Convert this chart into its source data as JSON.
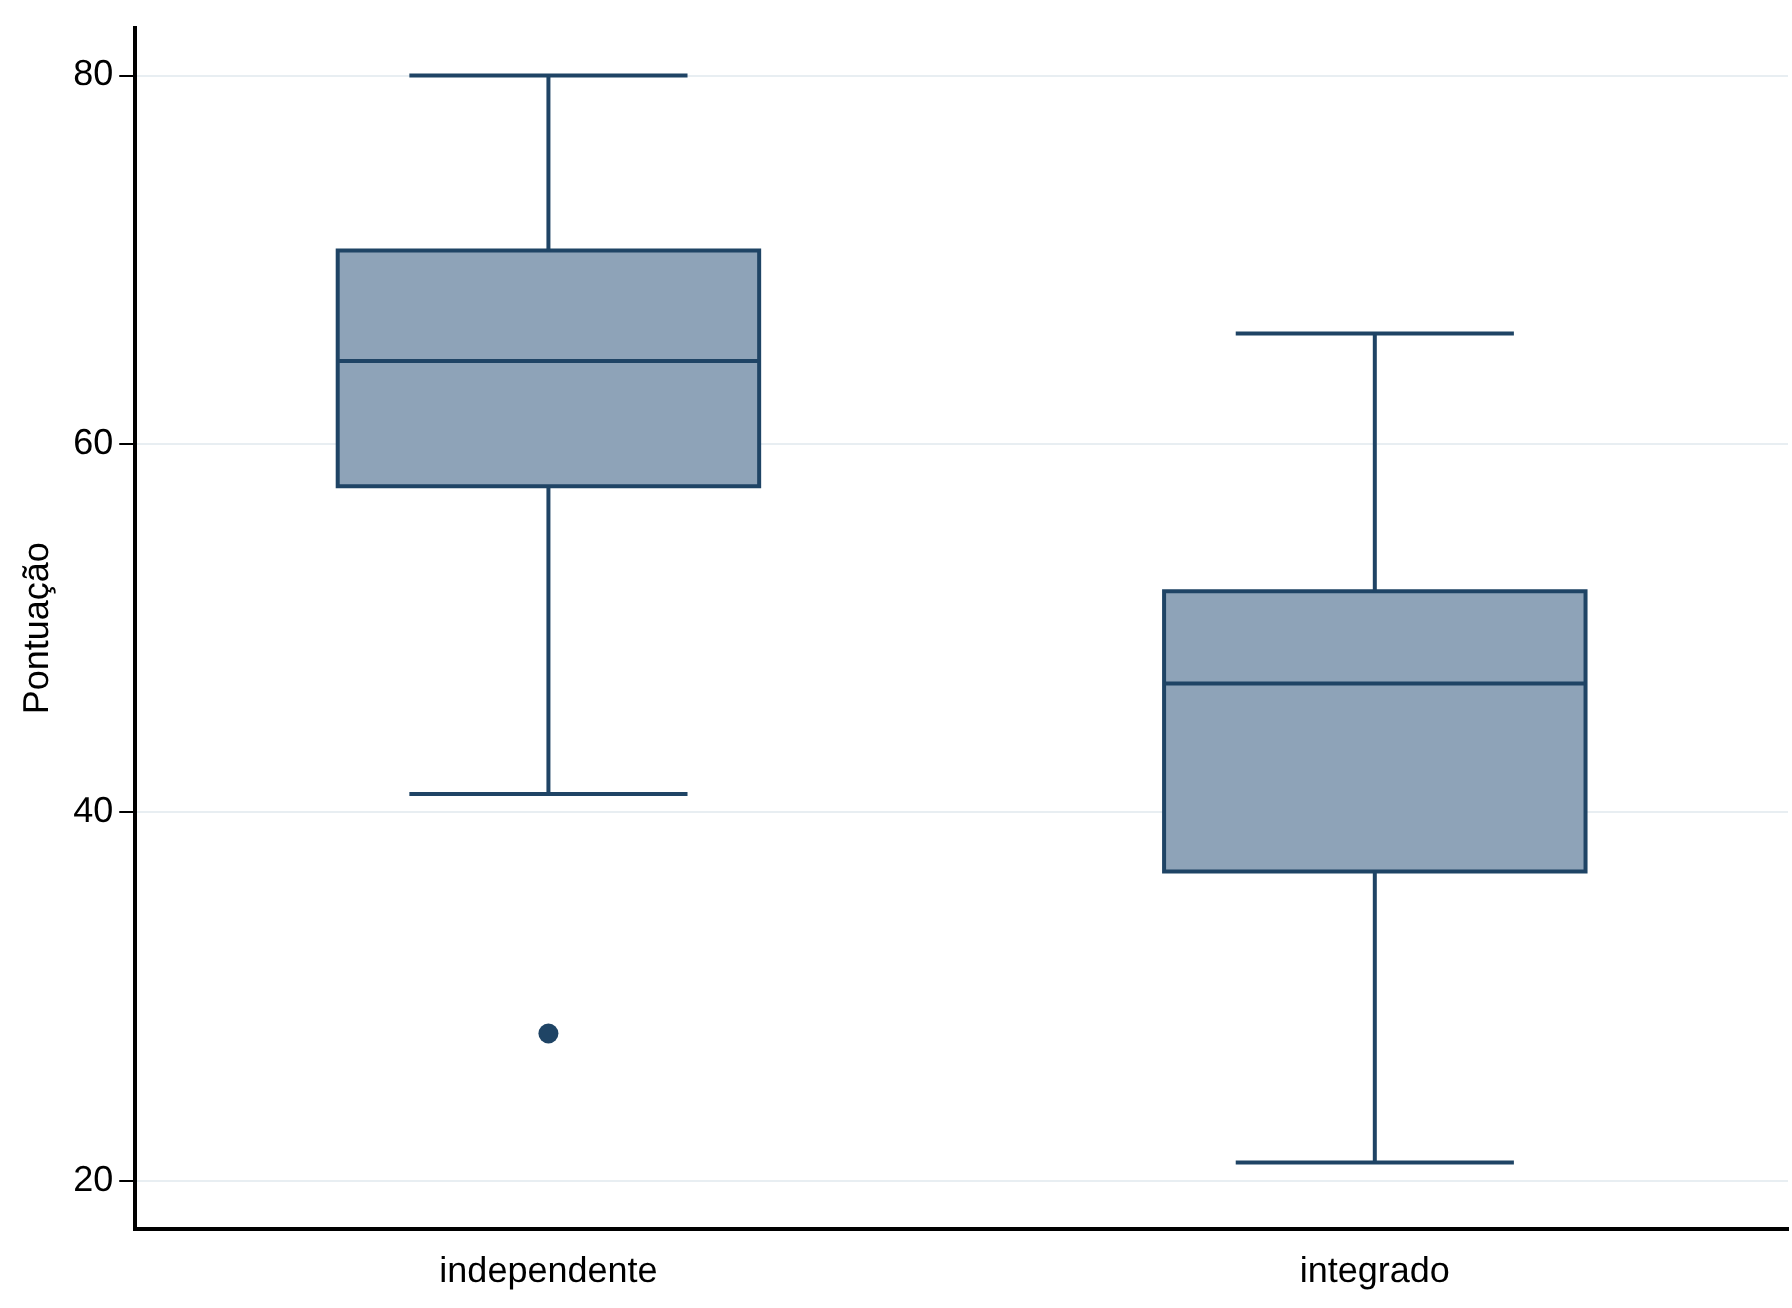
{
  "chart_data": {
    "type": "box",
    "ylabel": "Pontuação",
    "categories": [
      "independente",
      "integrado"
    ],
    "boxes": [
      {
        "low": 41,
        "q1": 57.7,
        "median": 64.5,
        "q3": 70.5,
        "high": 80,
        "outliers": [
          28
        ]
      },
      {
        "low": 21,
        "q1": 36.8,
        "median": 47,
        "q3": 52,
        "high": 66
      }
    ],
    "color": "#8ea3b8",
    "ylim": [
      17.4,
      82.6
    ],
    "yticks": [
      20,
      40,
      60,
      80
    ],
    "grid": "y",
    "legend": false
  }
}
